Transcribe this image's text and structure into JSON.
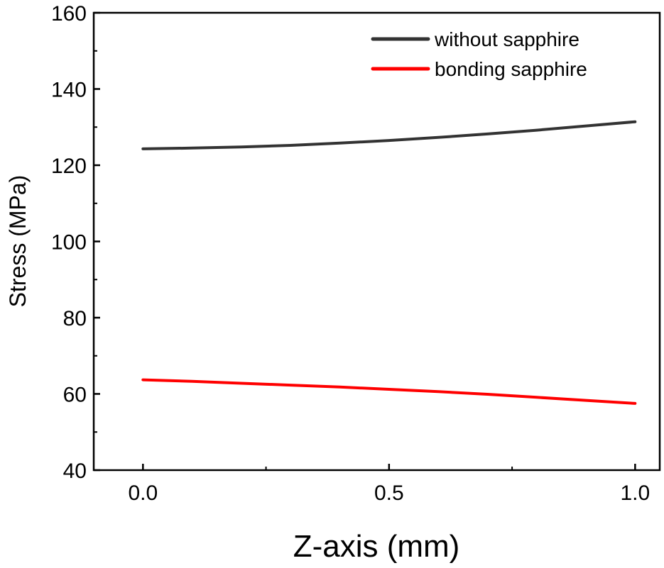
{
  "chart_data": {
    "type": "line",
    "title": "",
    "xlabel": "Z-axis (mm)",
    "ylabel": "Stress (MPa)",
    "xlim": [
      -0.1,
      1.05
    ],
    "ylim": [
      40,
      160
    ],
    "x_ticks": [
      "0.0",
      "0.5",
      "1.0"
    ],
    "y_ticks": [
      "40",
      "60",
      "80",
      "100",
      "120",
      "140",
      "160"
    ],
    "grid": false,
    "legend_position": "top-right",
    "series": [
      {
        "name": "without sapphire",
        "color": "#333333",
        "x": [
          0.0,
          0.1,
          0.2,
          0.3,
          0.4,
          0.5,
          0.6,
          0.7,
          0.8,
          0.9,
          1.0
        ],
        "y": [
          124.3,
          124.5,
          124.8,
          125.2,
          125.8,
          126.5,
          127.3,
          128.2,
          129.2,
          130.3,
          131.4
        ]
      },
      {
        "name": "bonding sapphire",
        "color": "#ff0000",
        "x": [
          0.0,
          0.1,
          0.2,
          0.3,
          0.4,
          0.5,
          0.6,
          0.7,
          0.8,
          0.9,
          1.0
        ],
        "y": [
          63.7,
          63.3,
          62.8,
          62.3,
          61.8,
          61.2,
          60.6,
          59.9,
          59.1,
          58.3,
          57.5
        ]
      }
    ]
  }
}
